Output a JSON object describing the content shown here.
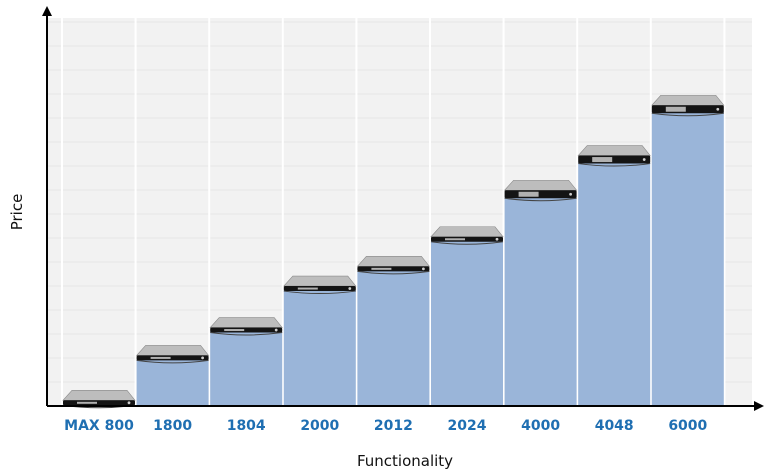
{
  "chart_data": {
    "type": "bar",
    "title": "",
    "xlabel": "Functionality",
    "ylabel": "Price",
    "categories": [
      "MAX 800",
      "1800",
      "1804",
      "2000",
      "2012",
      "2024",
      "4000",
      "4048",
      "6000"
    ],
    "values": [
      0.5,
      13.7,
      21.9,
      34.1,
      39.9,
      48.6,
      61.4,
      71.6,
      86.4
    ],
    "ylim": [
      0,
      100
    ],
    "grid": true,
    "colors": {
      "bar": "#9ab5d9",
      "label": "#1f6fb2",
      "grid": "#e6e6e6",
      "plot_bg": "#f2f2f2",
      "device_top": "#bdbdbd",
      "device_front": "#141414"
    },
    "bar_icon": "rack-server-icon"
  }
}
